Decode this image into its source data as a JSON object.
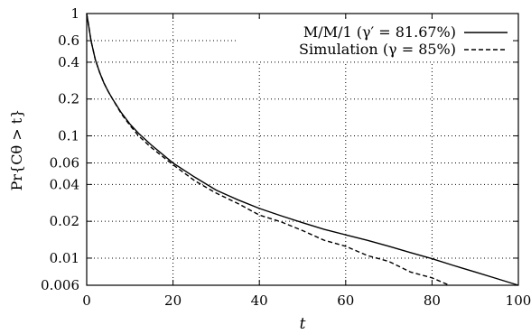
{
  "chart_data": {
    "type": "line",
    "title": "",
    "xlabel": "t",
    "ylabel": "Pr{Cθ > t}",
    "xlim": [
      0,
      100
    ],
    "ylim": [
      0.006,
      1
    ],
    "yscale": "log",
    "grid": true,
    "legend_position": "top-right",
    "x_ticks": [
      "0",
      "20",
      "40",
      "60",
      "80",
      "100"
    ],
    "x_tick_values": [
      0,
      20,
      40,
      60,
      80,
      100
    ],
    "y_ticks": [
      "1",
      "0.6",
      "0.4",
      "0.2",
      "0.1",
      "0.06",
      "0.04",
      "0.02",
      "0.01",
      "0.006"
    ],
    "y_tick_values": [
      1,
      0.6,
      0.4,
      0.2,
      0.1,
      0.06,
      0.04,
      0.02,
      0.01,
      0.006
    ],
    "series": [
      {
        "name": "M/M/1 (γ′ = 81.67%)",
        "style": "solid",
        "x": [
          0,
          0.5,
          1,
          2,
          3,
          4,
          5,
          6,
          8,
          10,
          12,
          15,
          20,
          25,
          30,
          35,
          40,
          45,
          50,
          55,
          60,
          65,
          70,
          75,
          80,
          85,
          90,
          95,
          100
        ],
        "y": [
          1.0,
          0.78,
          0.6,
          0.42,
          0.33,
          0.27,
          0.23,
          0.2,
          0.155,
          0.125,
          0.105,
          0.084,
          0.06,
          0.046,
          0.036,
          0.03,
          0.0255,
          0.0222,
          0.0195,
          0.0172,
          0.0155,
          0.014,
          0.0125,
          0.0111,
          0.0099,
          0.0087,
          0.0077,
          0.0068,
          0.006
        ]
      },
      {
        "name": "Simulation (γ = 85%)",
        "style": "dashed",
        "x": [
          0,
          0.5,
          1,
          2,
          3,
          4,
          5,
          6,
          8,
          10,
          12,
          15,
          20,
          25,
          30,
          35,
          40,
          45,
          50,
          55,
          60,
          65,
          70,
          75,
          80,
          84
        ],
        "y": [
          1.0,
          0.78,
          0.6,
          0.42,
          0.33,
          0.27,
          0.23,
          0.2,
          0.152,
          0.122,
          0.1,
          0.08,
          0.058,
          0.043,
          0.034,
          0.028,
          0.0225,
          0.0198,
          0.0168,
          0.014,
          0.0125,
          0.0105,
          0.0094,
          0.0077,
          0.0069,
          0.006
        ]
      }
    ]
  }
}
